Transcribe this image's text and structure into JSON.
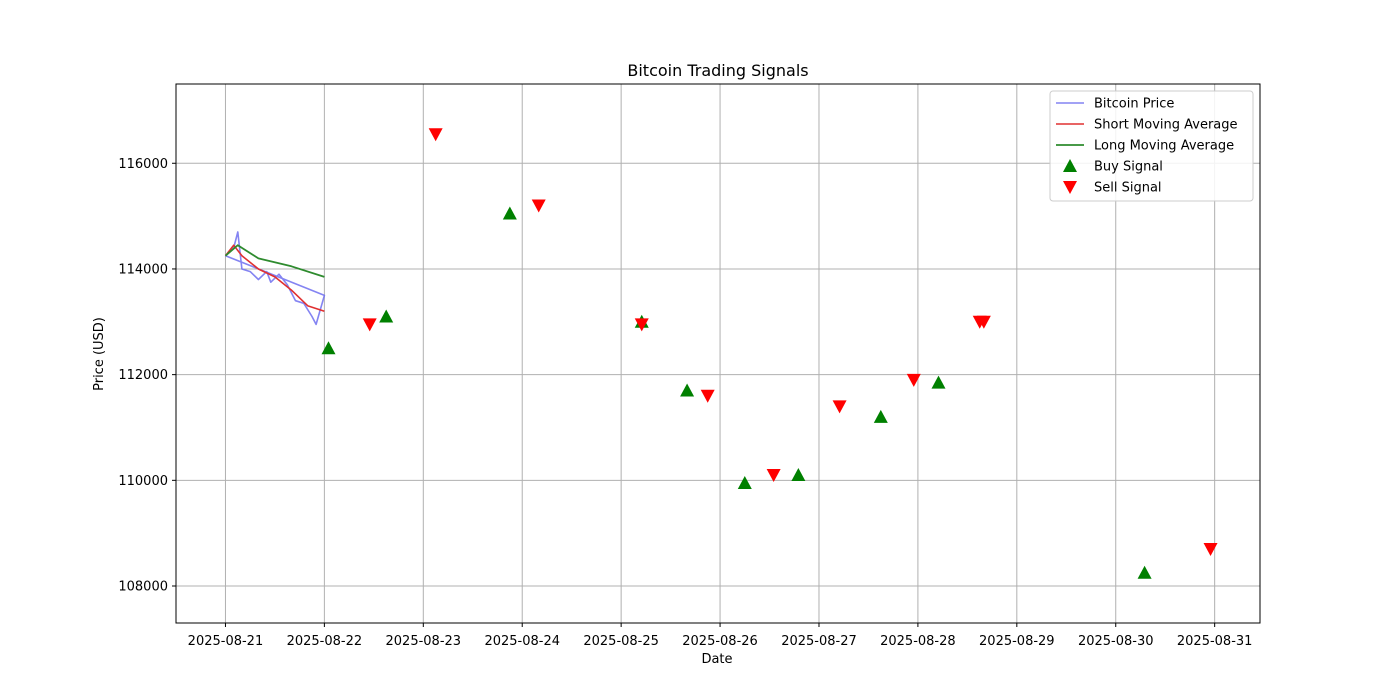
{
  "chart_data": {
    "type": "line",
    "title": "Bitcoin Trading Signals",
    "xlabel": "Date",
    "ylabel": "Price (USD)",
    "grid": true,
    "legend_placement": "top-right",
    "x_ticks": [
      "2025-08-21",
      "2025-08-22",
      "2025-08-23",
      "2025-08-24",
      "2025-08-25",
      "2025-08-26",
      "2025-08-27",
      "2025-08-28",
      "2025-08-29",
      "2025-08-30",
      "2025-08-31"
    ],
    "y_ticks": [
      108000,
      110000,
      112000,
      114000,
      116000
    ],
    "xlim": [
      "2025-08-20T12:00",
      "2025-08-31T11:00"
    ],
    "ylim": [
      107300,
      117500
    ],
    "colors": {
      "price": "#6e6ef0",
      "short_ma": "#e03030",
      "long_ma": "#2e8b2e",
      "buy": "#008000",
      "sell": "#ff0000",
      "grid": "#b0b0b0"
    },
    "legend": [
      "Bitcoin Price",
      "Short Moving Average",
      "Long Moving Average",
      "Buy Signal",
      "Sell Signal"
    ],
    "series": [
      {
        "name": "Bitcoin Price",
        "points": [
          [
            "2025-08-21T00:00",
            114250
          ],
          [
            "2025-08-21T02:00",
            114400
          ],
          [
            "2025-08-21T03:00",
            114700
          ],
          [
            "2025-08-21T04:00",
            114000
          ],
          [
            "2025-08-21T06:00",
            113950
          ],
          [
            "2025-08-21T08:00",
            113800
          ],
          [
            "2025-08-21T10:00",
            113950
          ],
          [
            "2025-08-21T11:00",
            113750
          ],
          [
            "2025-08-21T13:00",
            113900
          ],
          [
            "2025-08-21T15:00",
            113700
          ],
          [
            "2025-08-21T17:00",
            113400
          ],
          [
            "2025-08-21T19:00",
            113350
          ],
          [
            "2025-08-21T21:00",
            113100
          ],
          [
            "2025-08-21T22:00",
            112950
          ],
          [
            "2025-08-22T00:00",
            113500
          ],
          [
            "2025-08-21T00:00",
            114250
          ]
        ]
      },
      {
        "name": "Short Moving Average",
        "points": [
          [
            "2025-08-21T00:00",
            114250
          ],
          [
            "2025-08-21T02:00",
            114450
          ],
          [
            "2025-08-21T04:00",
            114250
          ],
          [
            "2025-08-21T08:00",
            114000
          ],
          [
            "2025-08-21T12:00",
            113850
          ],
          [
            "2025-08-21T16:00",
            113600
          ],
          [
            "2025-08-21T20:00",
            113300
          ],
          [
            "2025-08-22T00:00",
            113200
          ]
        ]
      },
      {
        "name": "Long Moving Average",
        "points": [
          [
            "2025-08-21T00:00",
            114250
          ],
          [
            "2025-08-21T03:00",
            114450
          ],
          [
            "2025-08-21T08:00",
            114200
          ],
          [
            "2025-08-21T16:00",
            114050
          ],
          [
            "2025-08-22T00:00",
            113850
          ]
        ]
      }
    ],
    "buy_signals": [
      [
        "2025-08-22T01:00",
        112500
      ],
      [
        "2025-08-22T15:00",
        113100
      ],
      [
        "2025-08-23T21:00",
        115050
      ],
      [
        "2025-08-25T05:00",
        113000
      ],
      [
        "2025-08-25T16:00",
        111700
      ],
      [
        "2025-08-26T06:00",
        109950
      ],
      [
        "2025-08-26T19:00",
        110100
      ],
      [
        "2025-08-27T15:00",
        111200
      ],
      [
        "2025-08-28T05:00",
        111850
      ],
      [
        "2025-08-30T07:00",
        108250
      ]
    ],
    "sell_signals": [
      [
        "2025-08-22T11:00",
        112950
      ],
      [
        "2025-08-23T03:00",
        116550
      ],
      [
        "2025-08-24T04:00",
        115200
      ],
      [
        "2025-08-25T05:00",
        112950
      ],
      [
        "2025-08-25T21:00",
        111600
      ],
      [
        "2025-08-26T13:00",
        110100
      ],
      [
        "2025-08-27T05:00",
        111400
      ],
      [
        "2025-08-27T23:00",
        111900
      ],
      [
        "2025-08-28T15:00",
        113000
      ],
      [
        "2025-08-28T16:00",
        113000
      ],
      [
        "2025-08-30T23:00",
        108700
      ]
    ]
  }
}
